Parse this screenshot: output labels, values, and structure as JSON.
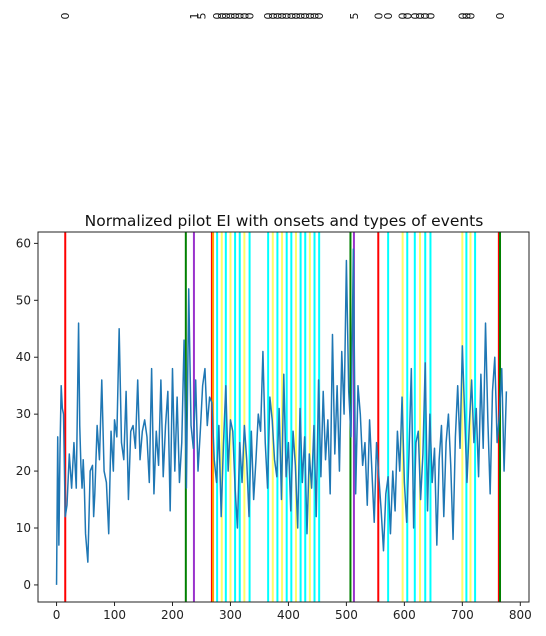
{
  "chart_data": {
    "type": "line",
    "title": "Normalized pilot EI with onsets and types of events",
    "xlabel": "",
    "ylabel": "",
    "xlim": [
      -32,
      815
    ],
    "ylim": [
      -3,
      62
    ],
    "x_ticks": [
      0,
      100,
      200,
      300,
      400,
      500,
      600,
      700,
      800
    ],
    "y_ticks": [
      0,
      10,
      20,
      30,
      40,
      50,
      60
    ],
    "grid": false,
    "series": [
      {
        "color": "#1f77b4",
        "x": [
          0,
          2,
          4,
          6,
          8,
          10,
          12,
          15,
          18,
          22,
          26,
          30,
          34,
          38,
          40,
          42,
          44,
          46,
          48,
          50,
          54,
          58,
          62,
          64,
          66,
          70,
          74,
          78,
          82,
          86,
          90,
          94,
          98,
          100,
          104,
          108,
          112,
          116,
          120,
          124,
          128,
          132,
          136,
          140,
          144,
          148,
          152,
          156,
          160,
          164,
          168,
          172,
          176,
          180,
          184,
          188,
          192,
          196,
          200,
          204,
          208,
          212,
          216,
          220,
          224,
          228,
          232,
          236,
          240,
          244,
          248,
          252,
          256,
          260,
          264,
          268,
          272,
          276,
          280,
          284,
          288,
          292,
          296,
          300,
          304,
          308,
          312,
          316,
          320,
          324,
          328,
          332,
          336,
          340,
          344,
          348,
          352,
          356,
          360,
          364,
          368,
          372,
          376,
          380,
          384,
          388,
          392,
          396,
          400,
          404,
          408,
          412,
          416,
          420,
          424,
          428,
          432,
          436,
          440,
          444,
          448,
          452,
          456,
          460,
          464,
          468,
          472,
          476,
          480,
          484,
          488,
          492,
          496,
          500,
          504,
          508,
          512,
          516,
          520,
          524,
          528,
          532,
          536,
          540,
          544,
          548,
          552,
          556,
          560,
          564,
          568,
          572,
          576,
          580,
          584,
          588,
          592,
          596,
          600,
          604,
          608,
          612,
          616,
          620,
          624,
          628,
          632,
          636,
          640,
          644,
          648,
          652,
          656,
          660,
          664,
          668,
          672,
          676,
          680,
          684,
          688,
          692,
          696,
          700,
          704,
          708,
          712,
          716,
          720,
          724,
          728,
          732,
          736,
          740,
          744,
          748,
          752,
          756,
          760,
          764,
          768,
          772,
          776
        ],
        "values": [
          0,
          26,
          7,
          24,
          35,
          31,
          30,
          12,
          14,
          23,
          17,
          25,
          17,
          46,
          28,
          21,
          17,
          22,
          17,
          9,
          4,
          20,
          21,
          12,
          16,
          28,
          22,
          36,
          20,
          18,
          9,
          27,
          20,
          29,
          26,
          45,
          25,
          22,
          34,
          15,
          27,
          28,
          24,
          36,
          22,
          27,
          29,
          26,
          18,
          38,
          16,
          27,
          21,
          36,
          19,
          28,
          34,
          13,
          38,
          20,
          33,
          18,
          25,
          43,
          17,
          52,
          28,
          24,
          36,
          20,
          27,
          35,
          38,
          28,
          33,
          32,
          22,
          18,
          28,
          12,
          25,
          35,
          20,
          29,
          27,
          17,
          10,
          25,
          18,
          28,
          22,
          12,
          27,
          15,
          22,
          30,
          27,
          41,
          25,
          17,
          33,
          29,
          22,
          19,
          31,
          15,
          37,
          19,
          25,
          13,
          27,
          21,
          10,
          31,
          18,
          26,
          9,
          23,
          17,
          28,
          12,
          36,
          19,
          34,
          22,
          29,
          16,
          44,
          23,
          35,
          20,
          41,
          30,
          57,
          34,
          26,
          59,
          16,
          35,
          30,
          21,
          25,
          14,
          29,
          20,
          11,
          25,
          19,
          13,
          6,
          16,
          19,
          9,
          20,
          13,
          27,
          20,
          33,
          18,
          11,
          23,
          38,
          10,
          25,
          27,
          15,
          23,
          39,
          13,
          30,
          18,
          24,
          7,
          22,
          28,
          12,
          25,
          30,
          21,
          8,
          26,
          35,
          24,
          42,
          30,
          18,
          28,
          36,
          25,
          31,
          19,
          37,
          24,
          46,
          29,
          16,
          34,
          40,
          25,
          30,
          38,
          20,
          34
        ]
      }
    ],
    "event_lines": [
      {
        "x": 15,
        "color": "#ff0000"
      },
      {
        "x": 223,
        "color": "#008000"
      },
      {
        "x": 237,
        "color": "#9932cc"
      },
      {
        "x": 268,
        "color": "#ff0000"
      },
      {
        "x": 270,
        "color": "#ffa500"
      },
      {
        "x": 277,
        "color": "#00ffff"
      },
      {
        "x": 285,
        "color": "#ffff66"
      },
      {
        "x": 292,
        "color": "#00ffff"
      },
      {
        "x": 300,
        "color": "#ffff66"
      },
      {
        "x": 308,
        "color": "#00ffff"
      },
      {
        "x": 316,
        "color": "#00ffff"
      },
      {
        "x": 324,
        "color": "#ffff66"
      },
      {
        "x": 333,
        "color": "#00ffff"
      },
      {
        "x": 365,
        "color": "#00ffff"
      },
      {
        "x": 373,
        "color": "#ffff66"
      },
      {
        "x": 381,
        "color": "#00ffff"
      },
      {
        "x": 389,
        "color": "#ffff66"
      },
      {
        "x": 397,
        "color": "#00ffff"
      },
      {
        "x": 405,
        "color": "#00ffff"
      },
      {
        "x": 413,
        "color": "#ffff66"
      },
      {
        "x": 421,
        "color": "#00ffff"
      },
      {
        "x": 429,
        "color": "#00ffff"
      },
      {
        "x": 437,
        "color": "#ffff66"
      },
      {
        "x": 445,
        "color": "#00ffff"
      },
      {
        "x": 453,
        "color": "#00ffff"
      },
      {
        "x": 507,
        "color": "#008000"
      },
      {
        "x": 513,
        "color": "#9932cc"
      },
      {
        "x": 555,
        "color": "#ff0000"
      },
      {
        "x": 572,
        "color": "#00ffff"
      },
      {
        "x": 597,
        "color": "#ffff66"
      },
      {
        "x": 605,
        "color": "#00ffff"
      },
      {
        "x": 618,
        "color": "#00ffff"
      },
      {
        "x": 627,
        "color": "#ffff66"
      },
      {
        "x": 636,
        "color": "#00ffff"
      },
      {
        "x": 645,
        "color": "#00ffff"
      },
      {
        "x": 700,
        "color": "#ffff66"
      },
      {
        "x": 707,
        "color": "#00ffff"
      },
      {
        "x": 714,
        "color": "#ffff66"
      },
      {
        "x": 722,
        "color": "#00ffff"
      },
      {
        "x": 763,
        "color": "#ff0000"
      },
      {
        "x": 765,
        "color": "#008000"
      }
    ],
    "annotations": [
      {
        "x": 15,
        "text": "0"
      },
      {
        "x": 237,
        "text": "1"
      },
      {
        "x": 250,
        "text": "5"
      },
      {
        "x": 277,
        "text": "0"
      },
      {
        "x": 285,
        "text": "0"
      },
      {
        "x": 292,
        "text": "0"
      },
      {
        "x": 300,
        "text": "0"
      },
      {
        "x": 308,
        "text": "0"
      },
      {
        "x": 316,
        "text": "0"
      },
      {
        "x": 324,
        "text": "0"
      },
      {
        "x": 333,
        "text": "0"
      },
      {
        "x": 365,
        "text": "0"
      },
      {
        "x": 373,
        "text": "0"
      },
      {
        "x": 381,
        "text": "0"
      },
      {
        "x": 389,
        "text": "0"
      },
      {
        "x": 397,
        "text": "0"
      },
      {
        "x": 405,
        "text": "0"
      },
      {
        "x": 413,
        "text": "0"
      },
      {
        "x": 421,
        "text": "0"
      },
      {
        "x": 429,
        "text": "0"
      },
      {
        "x": 437,
        "text": "0"
      },
      {
        "x": 445,
        "text": "0"
      },
      {
        "x": 453,
        "text": "0"
      },
      {
        "x": 513,
        "text": "5"
      },
      {
        "x": 555,
        "text": "0"
      },
      {
        "x": 572,
        "text": "0"
      },
      {
        "x": 597,
        "text": "0"
      },
      {
        "x": 605,
        "text": "0"
      },
      {
        "x": 618,
        "text": "0"
      },
      {
        "x": 627,
        "text": "0"
      },
      {
        "x": 636,
        "text": "0"
      },
      {
        "x": 645,
        "text": "0"
      },
      {
        "x": 700,
        "text": "0"
      },
      {
        "x": 707,
        "text": "0"
      },
      {
        "x": 714,
        "text": "0"
      },
      {
        "x": 765,
        "text": "0"
      }
    ]
  }
}
